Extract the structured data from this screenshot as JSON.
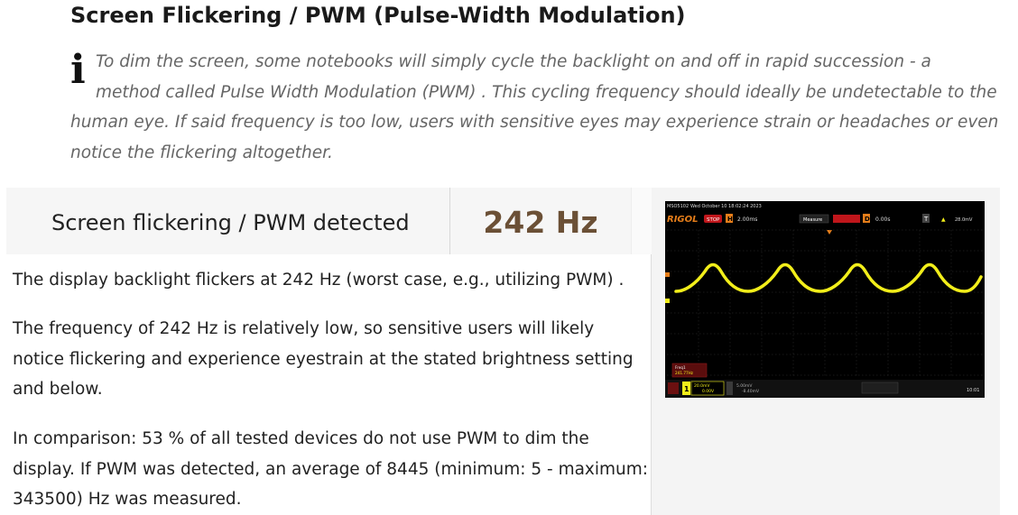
{
  "heading": "Screen Flickering / PWM (Pulse-Width Modulation)",
  "info_text": "To dim the screen, some notebooks will simply cycle the backlight on and off in rapid succession - a method called Pulse Width Modulation (PWM) . This cycling frequency should ideally be undetectable to the human eye. If said frequency is too low, users with sensitive eyes may experience strain or headaches or even notice the flickering altogether.",
  "result": {
    "label": "Screen flickering / PWM detected",
    "value": "242 Hz"
  },
  "paragraphs": [
    "The display backlight flickers at 242 Hz (worst case, e.g., utilizing PWM) .",
    "The frequency of 242 Hz is relatively low, so sensitive users will likely notice flickering and experience eyestrain at the stated brightness setting and below.",
    "In comparison: 53 % of all tested devices do not use PWM to dim the display. If PWM was detected, an average of 8445 (minimum: 5 - maximum: 343500) Hz was measured."
  ],
  "oscilloscope": {
    "model": "MSO5102",
    "date": "Wed October 10 18:02:24 2023",
    "brand": "RIGOL",
    "status": "STOP",
    "h_label": "H",
    "h_value": "2.00ms",
    "measure": "Measure",
    "d_label": "D",
    "d_value": "0.00s",
    "t_label": "T",
    "trigger_value": "28.0mV",
    "freq_label": "Freq1",
    "freq_value": "241.77Hz",
    "ch1": "1",
    "ch1_scale": "20.0mV",
    "ch1_offset": "0.00V",
    "ch2_scale": "5.00mV",
    "ch2_offset": "-8.40mV",
    "clock": "10:01",
    "colors": {
      "trace": "#f2ee1a",
      "background": "#000000",
      "brand": "#e67e1a"
    }
  }
}
